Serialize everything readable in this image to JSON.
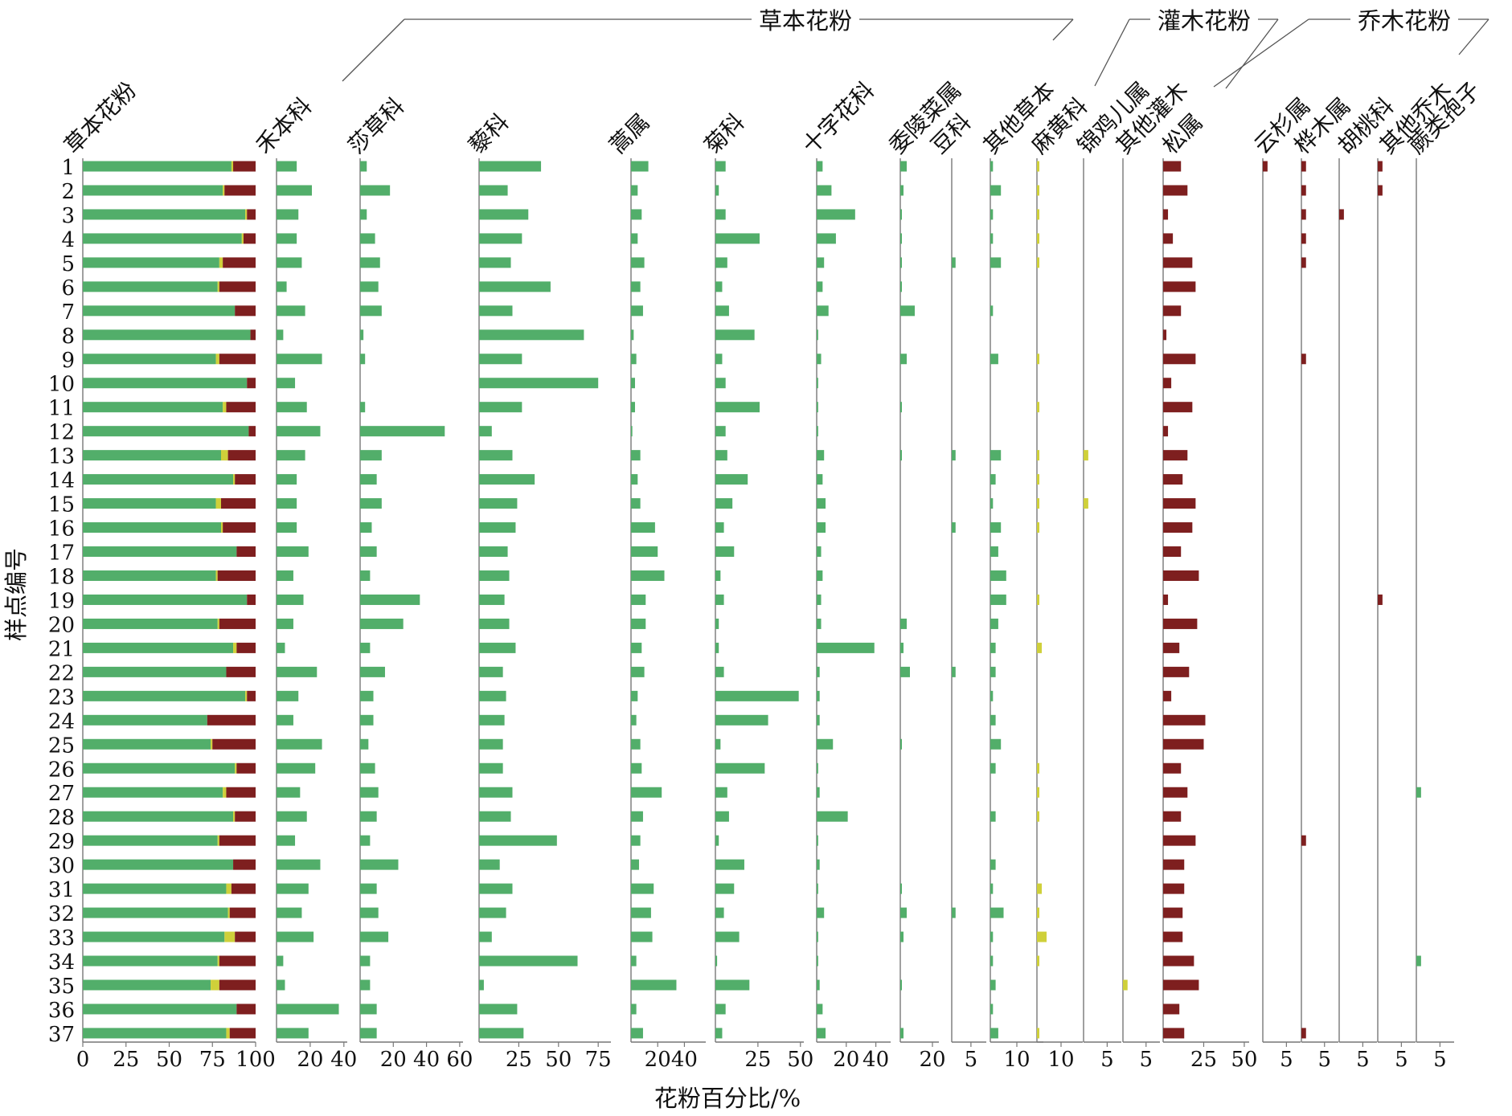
{
  "chart_data": {
    "type": "bar",
    "orientation": "horizontal",
    "xlabel": "花粉百分比/%",
    "ylabel": "样点编号",
    "colors": {
      "herb": "#52AE6A",
      "shrub": "#CFD03A",
      "tree": "#7E1F1F",
      "axis": "#777777"
    },
    "samples": [
      "1",
      "2",
      "3",
      "4",
      "5",
      "6",
      "7",
      "8",
      "9",
      "10",
      "11",
      "12",
      "13",
      "14",
      "15",
      "16",
      "17",
      "18",
      "19",
      "20",
      "21",
      "22",
      "23",
      "24",
      "25",
      "26",
      "27",
      "28",
      "29",
      "30",
      "31",
      "32",
      "33",
      "34",
      "35",
      "36",
      "37"
    ],
    "groups": [
      {
        "name": "草本花粉",
        "panels": [
          2,
          3,
          4,
          5,
          6,
          7,
          8,
          9,
          10
        ]
      },
      {
        "name": "灌木花粉",
        "panels": [
          11,
          12,
          13
        ]
      },
      {
        "name": "乔木花粉",
        "panels": [
          14,
          15,
          16,
          17,
          18,
          19
        ]
      }
    ],
    "panels": [
      {
        "name": "草本花粉",
        "type": "stacked",
        "xlim": [
          0,
          100
        ],
        "ticks": [
          0,
          25,
          50,
          75,
          100
        ],
        "series": [
          {
            "name": "草本花粉",
            "color": "herb",
            "values": [
              86,
              81,
              94,
              92,
              79,
              78,
              88,
              97,
              77,
              95,
              81,
              96,
              80,
              87,
              77,
              80,
              89,
              77,
              95,
              78,
              87,
              83,
              94,
              72,
              74,
              88,
              81,
              87,
              78,
              87,
              83,
              84,
              82,
              78,
              74,
              89,
              83
            ]
          },
          {
            "name": "灌木花粉",
            "color": "shrub",
            "values": [
              1,
              1,
              1,
              1,
              2,
              1,
              0,
              0,
              2,
              0,
              2,
              0,
              4,
              1,
              3,
              1,
              0,
              1,
              0,
              1,
              2,
              0,
              1,
              0,
              1,
              1,
              2,
              1,
              1,
              0,
              3,
              1,
              6,
              1,
              5,
              0,
              2
            ]
          },
          {
            "name": "乔木花粉",
            "color": "tree",
            "values": [
              13,
              18,
              5,
              7,
              19,
              21,
              12,
              3,
              21,
              5,
              17,
              4,
              16,
              12,
              20,
              19,
              11,
              22,
              5,
              21,
              11,
              17,
              5,
              28,
              25,
              11,
              17,
              12,
              21,
              13,
              14,
              15,
              12,
              21,
              21,
              11,
              15
            ]
          }
        ]
      },
      {
        "name": "禾本科",
        "color": "herb",
        "xlim": [
          0,
          42
        ],
        "ticks": [
          20,
          40
        ],
        "values": [
          12,
          21,
          13,
          12,
          15,
          6,
          17,
          4,
          27,
          11,
          18,
          26,
          17,
          12,
          12,
          12,
          19,
          10,
          16,
          10,
          5,
          24,
          13,
          10,
          27,
          23,
          14,
          18,
          11,
          26,
          19,
          15,
          22,
          4,
          5,
          37,
          19
        ]
      },
      {
        "name": "莎草科",
        "color": "herb",
        "xlim": [
          0,
          62
        ],
        "ticks": [
          20,
          40,
          60
        ],
        "values": [
          4,
          18,
          4,
          9,
          12,
          11,
          13,
          2,
          3,
          0,
          3,
          51,
          13,
          10,
          13,
          7,
          10,
          6,
          36,
          26,
          6,
          15,
          8,
          8,
          5,
          9,
          11,
          10,
          6,
          23,
          10,
          11,
          17,
          6,
          6,
          10,
          10
        ]
      },
      {
        "name": "藜科",
        "color": "herb",
        "xlim": [
          0,
          83
        ],
        "ticks": [
          25,
          50,
          75
        ],
        "values": [
          39,
          18,
          31,
          27,
          20,
          45,
          21,
          66,
          27,
          75,
          27,
          8,
          21,
          35,
          24,
          23,
          18,
          19,
          16,
          19,
          23,
          15,
          17,
          16,
          15,
          15,
          21,
          20,
          49,
          13,
          21,
          17,
          8,
          62,
          3,
          24,
          28
        ]
      },
      {
        "name": "蒿属",
        "color": "herb",
        "xlim": [
          0,
          56
        ],
        "ticks": [
          20,
          40
        ],
        "values": [
          13,
          5,
          8,
          5,
          10,
          7,
          9,
          2,
          4,
          3,
          3,
          1,
          7,
          5,
          7,
          18,
          20,
          25,
          11,
          11,
          8,
          10,
          5,
          4,
          7,
          8,
          23,
          9,
          7,
          6,
          17,
          15,
          16,
          4,
          34,
          4,
          9
        ]
      },
      {
        "name": "菊科",
        "color": "herb",
        "xlim": [
          0,
          52
        ],
        "ticks": [
          25,
          50
        ],
        "values": [
          6,
          2,
          6,
          26,
          7,
          4,
          8,
          23,
          4,
          6,
          26,
          6,
          7,
          19,
          10,
          5,
          11,
          3,
          5,
          2,
          2,
          5,
          49,
          31,
          3,
          29,
          7,
          8,
          2,
          17,
          11,
          5,
          14,
          1,
          20,
          6,
          4
        ]
      },
      {
        "name": "十字花科",
        "color": "herb",
        "xlim": [
          0,
          50
        ],
        "ticks": [
          20,
          40
        ],
        "values": [
          4,
          10,
          26,
          13,
          5,
          4,
          8,
          1,
          3,
          1,
          1,
          1,
          5,
          4,
          6,
          6,
          3,
          4,
          3,
          3,
          39,
          2,
          2,
          2,
          11,
          1,
          2,
          21,
          1,
          2,
          1,
          5,
          1,
          1,
          2,
          4,
          6
        ]
      },
      {
        "name": "委陵菜属",
        "color": "herb",
        "xlim": [
          0,
          24
        ],
        "ticks": [
          20
        ],
        "values": [
          4,
          2,
          1,
          1,
          1,
          1,
          9,
          0,
          4,
          0,
          1,
          0,
          1,
          0,
          0,
          0,
          0,
          0,
          0,
          4,
          2,
          6,
          0,
          0,
          1,
          0,
          0,
          0,
          0,
          0,
          1,
          4,
          2,
          0,
          1,
          0,
          2
        ]
      },
      {
        "name": "豆科",
        "color": "herb",
        "xlim": [
          0,
          9
        ],
        "ticks": [
          5
        ],
        "values": [
          0,
          0,
          0,
          0,
          1,
          0,
          0,
          0,
          0,
          0,
          0,
          0,
          1,
          0,
          0,
          1,
          0,
          0,
          0,
          0,
          0,
          1,
          0,
          0,
          0,
          0,
          0,
          0,
          0,
          0,
          0,
          1,
          0,
          0,
          0,
          0,
          0
        ]
      },
      {
        "name": "其他草本",
        "color": "herb",
        "xlim": [
          0,
          20
        ],
        "ticks": [
          10
        ],
        "values": [
          1,
          4,
          1,
          1,
          4,
          0,
          1,
          0,
          3,
          0,
          0,
          0,
          4,
          2,
          1,
          4,
          3,
          6,
          6,
          3,
          2,
          2,
          1,
          2,
          4,
          2,
          0,
          2,
          0,
          2,
          1,
          5,
          1,
          1,
          2,
          1,
          3
        ]
      },
      {
        "name": "麻黄科",
        "color": "shrub",
        "xlim": [
          0,
          19
        ],
        "ticks": [
          10
        ],
        "values": [
          1,
          1,
          1,
          1,
          1,
          0,
          0,
          0,
          1,
          0,
          1,
          0,
          1,
          1,
          1,
          1,
          0,
          0,
          1,
          0,
          2,
          0,
          0,
          0,
          0,
          1,
          1,
          1,
          0,
          0,
          2,
          1,
          4,
          1,
          0,
          0,
          1
        ]
      },
      {
        "name": "锦鸡儿属",
        "color": "shrub",
        "xlim": [
          0,
          8
        ],
        "ticks": [
          5
        ],
        "values": [
          0,
          0,
          0,
          0,
          0,
          0,
          0,
          0,
          0,
          0,
          0,
          0,
          1,
          0,
          1,
          0,
          0,
          0,
          0,
          0,
          0,
          0,
          0,
          0,
          0,
          0,
          0,
          0,
          0,
          0,
          0,
          0,
          0,
          0,
          0,
          0,
          0
        ]
      },
      {
        "name": "其他灌木",
        "color": "shrub",
        "xlim": [
          0,
          8
        ],
        "ticks": [
          5
        ],
        "values": [
          0,
          0,
          0,
          0,
          0,
          0,
          0,
          0,
          0,
          0,
          0,
          0,
          0,
          0,
          0,
          0,
          0,
          0,
          0,
          0,
          0,
          0,
          0,
          0,
          0,
          0,
          0,
          0,
          0,
          0,
          0,
          0,
          0,
          0,
          1,
          0,
          0
        ]
      },
      {
        "name": "松属",
        "color": "tree",
        "xlim": [
          0,
          53
        ],
        "ticks": [
          25,
          50
        ],
        "values": [
          11,
          15,
          3,
          6,
          18,
          20,
          11,
          2,
          20,
          5,
          18,
          3,
          15,
          12,
          20,
          18,
          11,
          22,
          3,
          21,
          10,
          16,
          5,
          26,
          25,
          11,
          15,
          11,
          20,
          13,
          13,
          12,
          12,
          19,
          22,
          10,
          13
        ]
      },
      {
        "name": "云杉属",
        "color": "tree",
        "xlim": [
          0,
          8
        ],
        "ticks": [
          5
        ],
        "values": [
          1,
          0,
          0,
          0,
          0,
          0,
          0,
          0,
          0,
          0,
          0,
          0,
          0,
          0,
          0,
          0,
          0,
          0,
          0,
          0,
          0,
          0,
          0,
          0,
          0,
          0,
          0,
          0,
          0,
          0,
          0,
          0,
          0,
          0,
          0,
          0,
          0
        ]
      },
      {
        "name": "桦木属",
        "color": "tree",
        "xlim": [
          0,
          8
        ],
        "ticks": [
          5
        ],
        "values": [
          1,
          1,
          1,
          1,
          1,
          0,
          0,
          0,
          1,
          0,
          0,
          0,
          0,
          0,
          0,
          0,
          0,
          0,
          0,
          0,
          0,
          0,
          0,
          0,
          0,
          0,
          0,
          0,
          1,
          0,
          0,
          0,
          0,
          0,
          0,
          0,
          1
        ]
      },
      {
        "name": "胡桃科",
        "color": "tree",
        "xlim": [
          0,
          8
        ],
        "ticks": [
          5
        ],
        "values": [
          0,
          0,
          1,
          0,
          0,
          0,
          0,
          0,
          0,
          0,
          0,
          0,
          0,
          0,
          0,
          0,
          0,
          0,
          0,
          0,
          0,
          0,
          0,
          0,
          0,
          0,
          0,
          0,
          0,
          0,
          0,
          0,
          0,
          0,
          0,
          0,
          0
        ]
      },
      {
        "name": "其他乔木",
        "color": "tree",
        "xlim": [
          0,
          8
        ],
        "ticks": [
          5
        ],
        "values": [
          1,
          1,
          0,
          0,
          0,
          0,
          0,
          0,
          0,
          0,
          0,
          0,
          0,
          0,
          0,
          0,
          0,
          0,
          1,
          0,
          0,
          0,
          0,
          0,
          0,
          0,
          0,
          0,
          0,
          0,
          0,
          0,
          0,
          0,
          0,
          0,
          0
        ]
      },
      {
        "name": "蕨类孢子",
        "color": "herb",
        "xlim": [
          0,
          8
        ],
        "ticks": [
          5
        ],
        "values": [
          0,
          0,
          0,
          0,
          0,
          0,
          0,
          0,
          0,
          0,
          0,
          0,
          0,
          0,
          0,
          0,
          0,
          0,
          0,
          0,
          0,
          0,
          0,
          0,
          0,
          0,
          1,
          0,
          0,
          0,
          0,
          0,
          0,
          1,
          0,
          0,
          0
        ]
      }
    ]
  }
}
